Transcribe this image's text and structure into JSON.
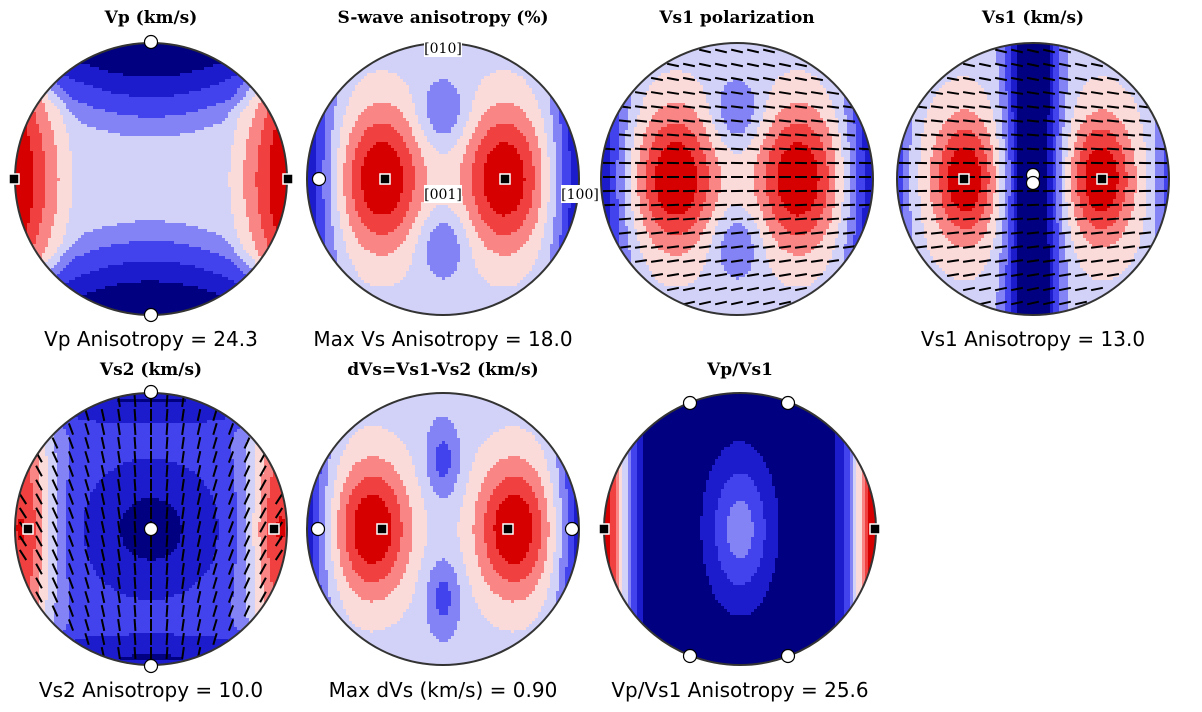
{
  "colors": {
    "palette": [
      "#000080",
      "#1c1ccd",
      "#4343ee",
      "#8383f6",
      "#d2d2f9",
      "#fbdada",
      "#f98585",
      "#f04040",
      "#d60000"
    ],
    "outline": "#333333",
    "contour": "#000000"
  },
  "pole_labels": {
    "x1": "[100]",
    "x2": "[010]",
    "x3": "[001]"
  },
  "panels": [
    {
      "id": "vp",
      "title": "Vp (km/s)",
      "caption": "Vp Anisotropy = 24.3",
      "field": "vp",
      "ticks": false,
      "poles": true,
      "max_marker": "square",
      "min_marker": "circle"
    },
    {
      "id": "avs",
      "title": "S-wave anisotropy (%)",
      "caption": "Max Vs Anisotropy = 18.0",
      "field": "avs",
      "ticks": false,
      "poles": true,
      "max_marker": "square",
      "min_marker": "circle"
    },
    {
      "id": "vs1pol",
      "title": "Vs1 polarization",
      "caption": "",
      "field": "avs",
      "ticks": true,
      "tick_mode": "vs1",
      "poles": false,
      "max_marker": "",
      "min_marker": ""
    },
    {
      "id": "vs1",
      "title": "Vs1 (km/s)",
      "caption": "Vs1 Anisotropy = 13.0",
      "field": "vs1",
      "ticks": true,
      "tick_mode": "vs1",
      "poles": false,
      "max_marker": "square",
      "min_marker": "circle"
    },
    {
      "id": "vs2",
      "title": "Vs2 (km/s)",
      "caption": "Vs2 Anisotropy = 10.0",
      "field": "vs2",
      "ticks": true,
      "tick_mode": "vs2",
      "poles": false,
      "max_marker": "square",
      "min_marker": "circle"
    },
    {
      "id": "dvs",
      "title": "dVs=Vs1-Vs2 (km/s)",
      "caption": "Max dVs (km/s) = 0.90",
      "field": "dvs",
      "ticks": false,
      "poles": false,
      "max_marker": "square",
      "min_marker": "circle"
    },
    {
      "id": "vpvs",
      "title": "Vp/Vs1",
      "caption": "Vp/Vs1 Anisotropy = 25.6",
      "field": "vpvs",
      "ticks": false,
      "poles": false,
      "max_marker": "square",
      "min_marker": "circle"
    }
  ]
}
